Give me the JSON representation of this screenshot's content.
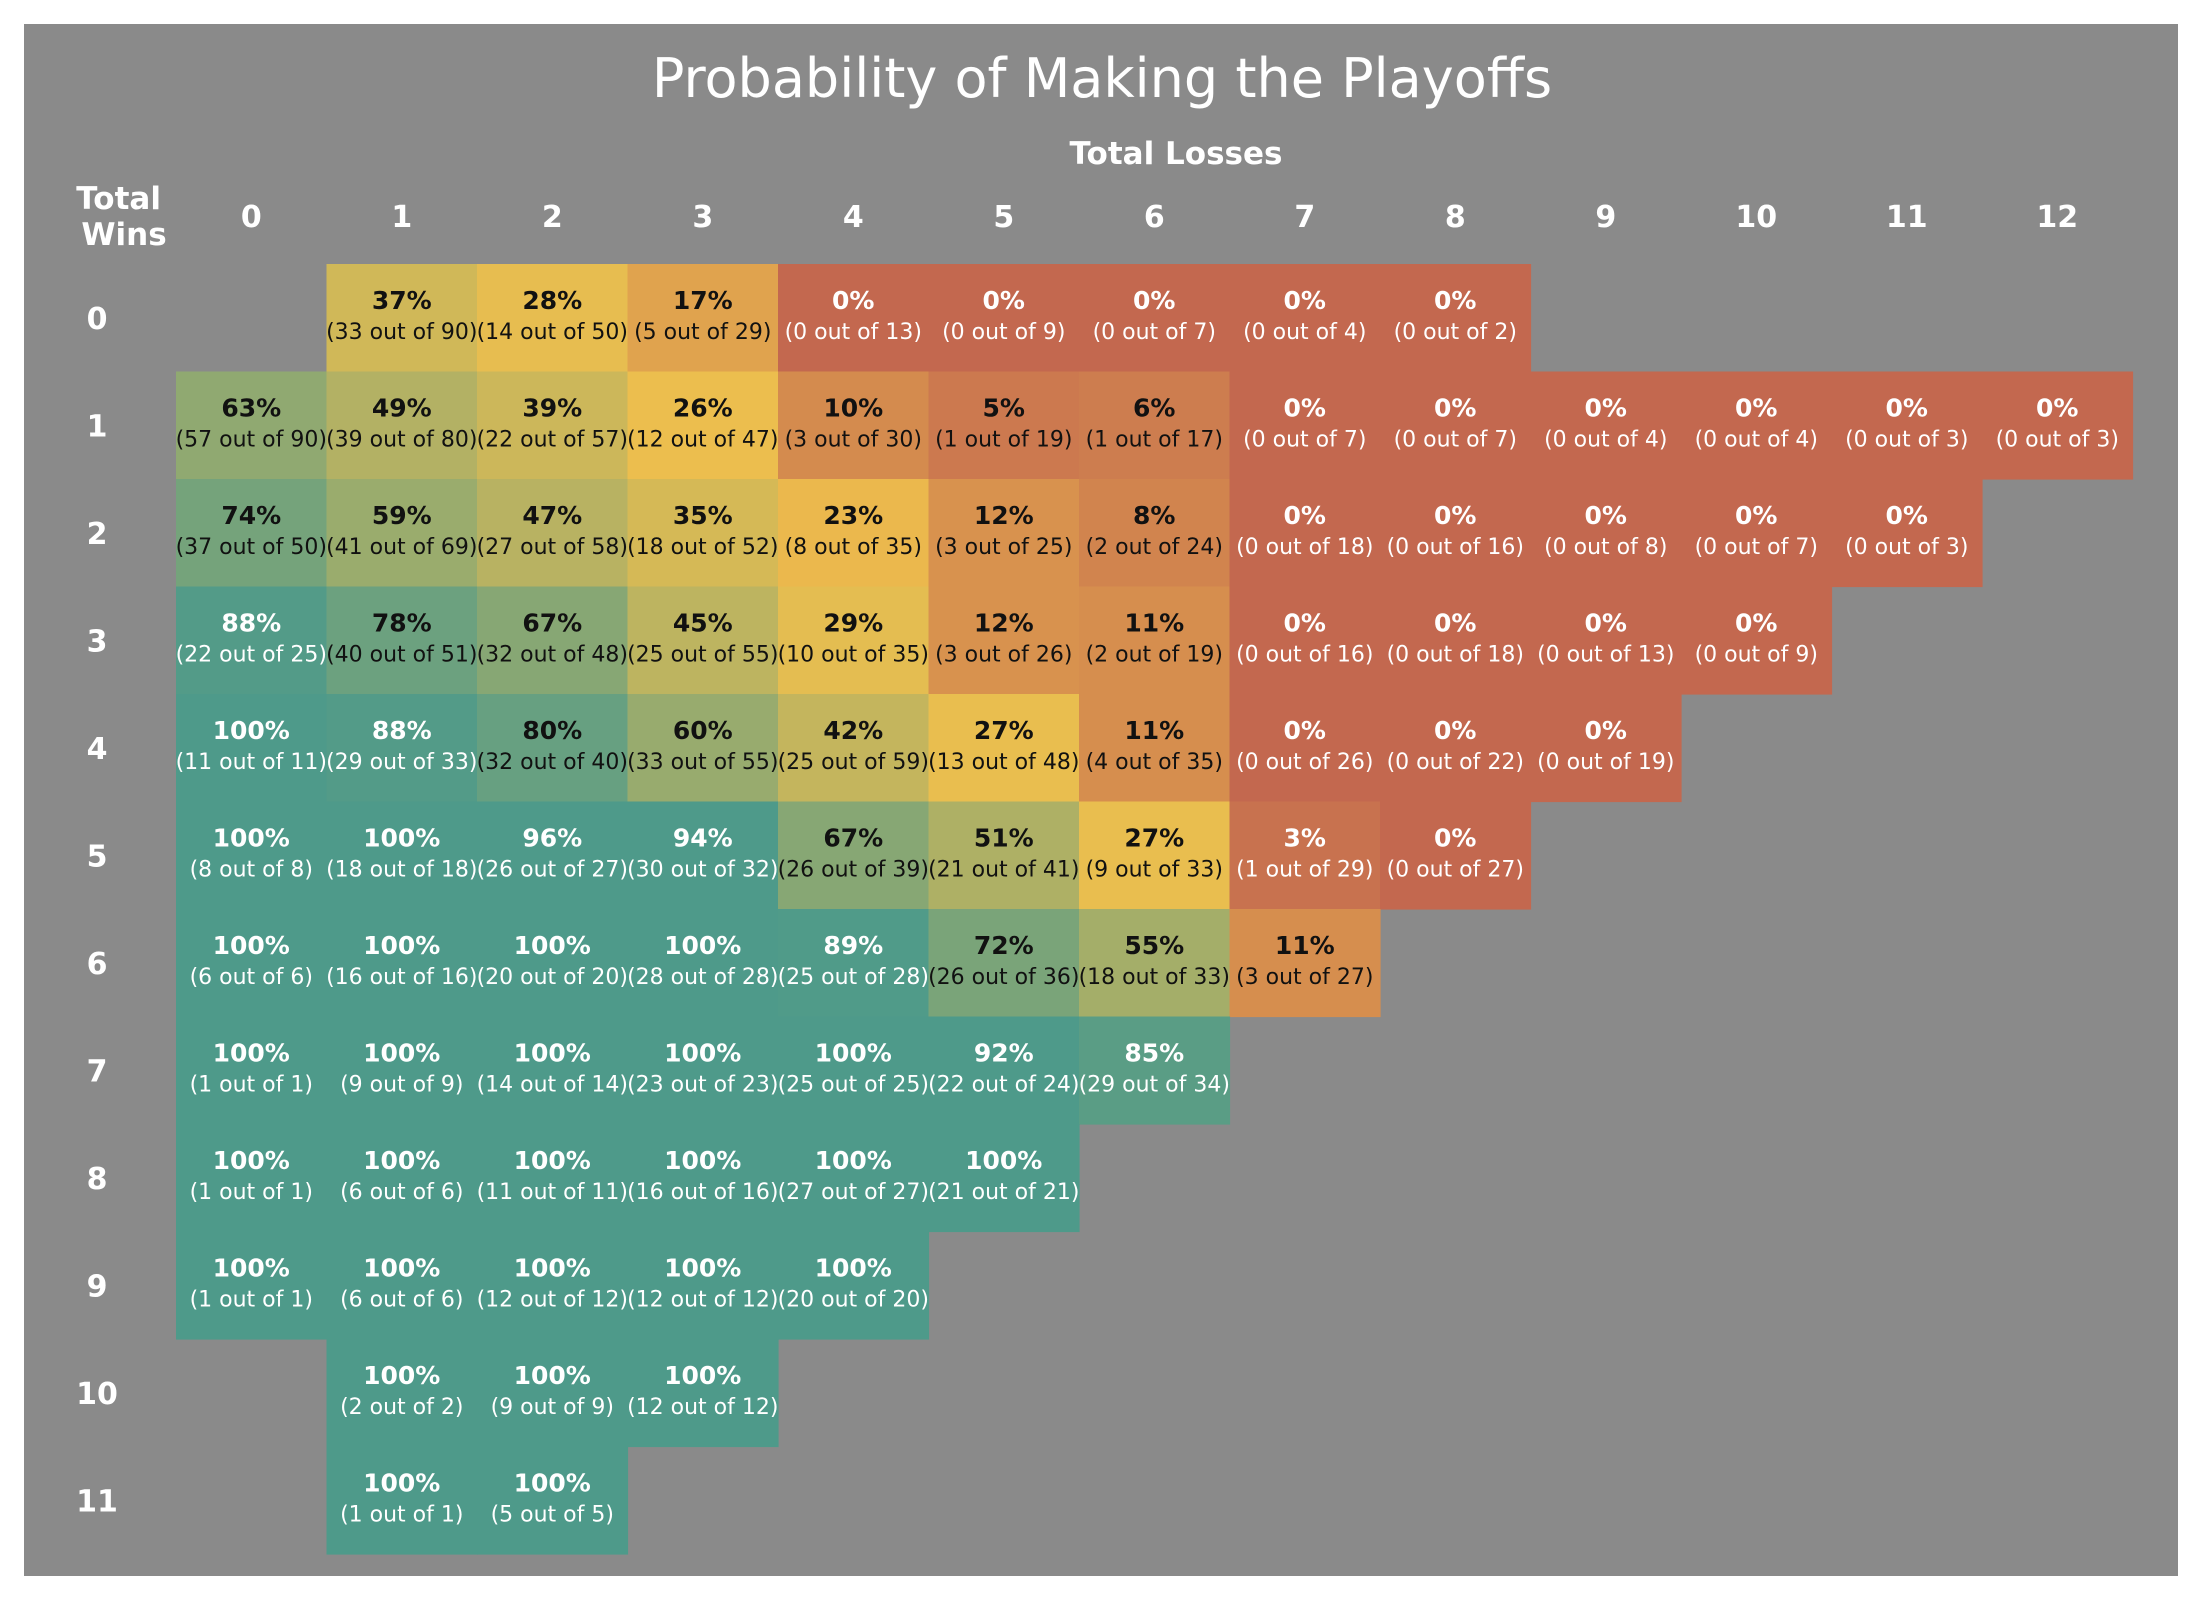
{
  "chart_data": {
    "type": "heatmap",
    "title": "Probability of Making the Playoffs",
    "xlabel": "Total Losses",
    "ylabel": "Total Wins",
    "x_categories": [
      "0",
      "1",
      "2",
      "3",
      "4",
      "5",
      "6",
      "7",
      "8",
      "9",
      "10",
      "11",
      "12"
    ],
    "y_categories": [
      "0",
      "1",
      "2",
      "3",
      "4",
      "5",
      "6",
      "7",
      "8",
      "9",
      "10",
      "11"
    ],
    "color_scale": {
      "low": "#c3684f",
      "mid": "#eebf4d",
      "high": "#4e9a8a"
    },
    "background": "#8a8a8a",
    "cells": [
      {
        "wins": 0,
        "losses": 1,
        "pct": "37%",
        "count": "(33 out of 90)"
      },
      {
        "wins": 0,
        "losses": 2,
        "pct": "28%",
        "count": "(14 out of 50)"
      },
      {
        "wins": 0,
        "losses": 3,
        "pct": "17%",
        "count": "(5 out of 29)"
      },
      {
        "wins": 0,
        "losses": 4,
        "pct": "0%",
        "count": "(0 out of 13)"
      },
      {
        "wins": 0,
        "losses": 5,
        "pct": "0%",
        "count": "(0 out of 9)"
      },
      {
        "wins": 0,
        "losses": 6,
        "pct": "0%",
        "count": "(0 out of 7)"
      },
      {
        "wins": 0,
        "losses": 7,
        "pct": "0%",
        "count": "(0 out of 4)"
      },
      {
        "wins": 0,
        "losses": 8,
        "pct": "0%",
        "count": "(0 out of 2)"
      },
      {
        "wins": 1,
        "losses": 0,
        "pct": "63%",
        "count": "(57 out of 90)"
      },
      {
        "wins": 1,
        "losses": 1,
        "pct": "49%",
        "count": "(39 out of 80)"
      },
      {
        "wins": 1,
        "losses": 2,
        "pct": "39%",
        "count": "(22 out of 57)"
      },
      {
        "wins": 1,
        "losses": 3,
        "pct": "26%",
        "count": "(12 out of 47)"
      },
      {
        "wins": 1,
        "losses": 4,
        "pct": "10%",
        "count": "(3 out of 30)"
      },
      {
        "wins": 1,
        "losses": 5,
        "pct": "5%",
        "count": "(1 out of 19)"
      },
      {
        "wins": 1,
        "losses": 6,
        "pct": "6%",
        "count": "(1 out of 17)"
      },
      {
        "wins": 1,
        "losses": 7,
        "pct": "0%",
        "count": "(0 out of 7)"
      },
      {
        "wins": 1,
        "losses": 8,
        "pct": "0%",
        "count": "(0 out of 7)"
      },
      {
        "wins": 1,
        "losses": 9,
        "pct": "0%",
        "count": "(0 out of 4)"
      },
      {
        "wins": 1,
        "losses": 10,
        "pct": "0%",
        "count": "(0 out of 4)"
      },
      {
        "wins": 1,
        "losses": 11,
        "pct": "0%",
        "count": "(0 out of 3)"
      },
      {
        "wins": 1,
        "losses": 12,
        "pct": "0%",
        "count": "(0 out of 3)"
      },
      {
        "wins": 2,
        "losses": 0,
        "pct": "74%",
        "count": "(37 out of 50)"
      },
      {
        "wins": 2,
        "losses": 1,
        "pct": "59%",
        "count": "(41 out of 69)"
      },
      {
        "wins": 2,
        "losses": 2,
        "pct": "47%",
        "count": "(27 out of 58)"
      },
      {
        "wins": 2,
        "losses": 3,
        "pct": "35%",
        "count": "(18 out of 52)"
      },
      {
        "wins": 2,
        "losses": 4,
        "pct": "23%",
        "count": "(8 out of 35)"
      },
      {
        "wins": 2,
        "losses": 5,
        "pct": "12%",
        "count": "(3 out of 25)"
      },
      {
        "wins": 2,
        "losses": 6,
        "pct": "8%",
        "count": "(2 out of 24)"
      },
      {
        "wins": 2,
        "losses": 7,
        "pct": "0%",
        "count": "(0 out of 18)"
      },
      {
        "wins": 2,
        "losses": 8,
        "pct": "0%",
        "count": "(0 out of 16)"
      },
      {
        "wins": 2,
        "losses": 9,
        "pct": "0%",
        "count": "(0 out of 8)"
      },
      {
        "wins": 2,
        "losses": 10,
        "pct": "0%",
        "count": "(0 out of 7)"
      },
      {
        "wins": 2,
        "losses": 11,
        "pct": "0%",
        "count": "(0 out of 3)"
      },
      {
        "wins": 3,
        "losses": 0,
        "pct": "88%",
        "count": "(22 out of 25)"
      },
      {
        "wins": 3,
        "losses": 1,
        "pct": "78%",
        "count": "(40 out of 51)"
      },
      {
        "wins": 3,
        "losses": 2,
        "pct": "67%",
        "count": "(32 out of 48)"
      },
      {
        "wins": 3,
        "losses": 3,
        "pct": "45%",
        "count": "(25 out of 55)"
      },
      {
        "wins": 3,
        "losses": 4,
        "pct": "29%",
        "count": "(10 out of 35)"
      },
      {
        "wins": 3,
        "losses": 5,
        "pct": "12%",
        "count": "(3 out of 26)"
      },
      {
        "wins": 3,
        "losses": 6,
        "pct": "11%",
        "count": "(2 out of 19)"
      },
      {
        "wins": 3,
        "losses": 7,
        "pct": "0%",
        "count": "(0 out of 16)"
      },
      {
        "wins": 3,
        "losses": 8,
        "pct": "0%",
        "count": "(0 out of 18)"
      },
      {
        "wins": 3,
        "losses": 9,
        "pct": "0%",
        "count": "(0 out of 13)"
      },
      {
        "wins": 3,
        "losses": 10,
        "pct": "0%",
        "count": "(0 out of 9)"
      },
      {
        "wins": 4,
        "losses": 0,
        "pct": "100%",
        "count": "(11 out of 11)"
      },
      {
        "wins": 4,
        "losses": 1,
        "pct": "88%",
        "count": "(29 out of 33)"
      },
      {
        "wins": 4,
        "losses": 2,
        "pct": "80%",
        "count": "(32 out of 40)"
      },
      {
        "wins": 4,
        "losses": 3,
        "pct": "60%",
        "count": "(33 out of 55)"
      },
      {
        "wins": 4,
        "losses": 4,
        "pct": "42%",
        "count": "(25 out of 59)"
      },
      {
        "wins": 4,
        "losses": 5,
        "pct": "27%",
        "count": "(13 out of 48)"
      },
      {
        "wins": 4,
        "losses": 6,
        "pct": "11%",
        "count": "(4 out of 35)"
      },
      {
        "wins": 4,
        "losses": 7,
        "pct": "0%",
        "count": "(0 out of 26)"
      },
      {
        "wins": 4,
        "losses": 8,
        "pct": "0%",
        "count": "(0 out of 22)"
      },
      {
        "wins": 4,
        "losses": 9,
        "pct": "0%",
        "count": "(0 out of 19)"
      },
      {
        "wins": 5,
        "losses": 0,
        "pct": "100%",
        "count": "(8 out of 8)"
      },
      {
        "wins": 5,
        "losses": 1,
        "pct": "100%",
        "count": "(18 out of 18)"
      },
      {
        "wins": 5,
        "losses": 2,
        "pct": "96%",
        "count": "(26 out of 27)"
      },
      {
        "wins": 5,
        "losses": 3,
        "pct": "94%",
        "count": "(30 out of 32)"
      },
      {
        "wins": 5,
        "losses": 4,
        "pct": "67%",
        "count": "(26 out of 39)"
      },
      {
        "wins": 5,
        "losses": 5,
        "pct": "51%",
        "count": "(21 out of 41)"
      },
      {
        "wins": 5,
        "losses": 6,
        "pct": "27%",
        "count": "(9 out of 33)"
      },
      {
        "wins": 5,
        "losses": 7,
        "pct": "3%",
        "count": "(1 out of 29)"
      },
      {
        "wins": 5,
        "losses": 8,
        "pct": "0%",
        "count": "(0 out of 27)"
      },
      {
        "wins": 6,
        "losses": 0,
        "pct": "100%",
        "count": "(6 out of 6)"
      },
      {
        "wins": 6,
        "losses": 1,
        "pct": "100%",
        "count": "(16 out of 16)"
      },
      {
        "wins": 6,
        "losses": 2,
        "pct": "100%",
        "count": "(20 out of 20)"
      },
      {
        "wins": 6,
        "losses": 3,
        "pct": "100%",
        "count": "(28 out of 28)"
      },
      {
        "wins": 6,
        "losses": 4,
        "pct": "89%",
        "count": "(25 out of 28)"
      },
      {
        "wins": 6,
        "losses": 5,
        "pct": "72%",
        "count": "(26 out of 36)"
      },
      {
        "wins": 6,
        "losses": 6,
        "pct": "55%",
        "count": "(18 out of 33)"
      },
      {
        "wins": 6,
        "losses": 7,
        "pct": "11%",
        "count": "(3 out of 27)"
      },
      {
        "wins": 7,
        "losses": 0,
        "pct": "100%",
        "count": "(1 out of 1)"
      },
      {
        "wins": 7,
        "losses": 1,
        "pct": "100%",
        "count": "(9 out of 9)"
      },
      {
        "wins": 7,
        "losses": 2,
        "pct": "100%",
        "count": "(14 out of 14)"
      },
      {
        "wins": 7,
        "losses": 3,
        "pct": "100%",
        "count": "(23 out of 23)"
      },
      {
        "wins": 7,
        "losses": 4,
        "pct": "100%",
        "count": "(25 out of 25)"
      },
      {
        "wins": 7,
        "losses": 5,
        "pct": "92%",
        "count": "(22 out of 24)"
      },
      {
        "wins": 7,
        "losses": 6,
        "pct": "85%",
        "count": "(29 out of 34)"
      },
      {
        "wins": 8,
        "losses": 0,
        "pct": "100%",
        "count": "(1 out of 1)"
      },
      {
        "wins": 8,
        "losses": 1,
        "pct": "100%",
        "count": "(6 out of 6)"
      },
      {
        "wins": 8,
        "losses": 2,
        "pct": "100%",
        "count": "(11 out of 11)"
      },
      {
        "wins": 8,
        "losses": 3,
        "pct": "100%",
        "count": "(16 out of 16)"
      },
      {
        "wins": 8,
        "losses": 4,
        "pct": "100%",
        "count": "(27 out of 27)"
      },
      {
        "wins": 8,
        "losses": 5,
        "pct": "100%",
        "count": "(21 out of 21)"
      },
      {
        "wins": 9,
        "losses": 0,
        "pct": "100%",
        "count": "(1 out of 1)"
      },
      {
        "wins": 9,
        "losses": 1,
        "pct": "100%",
        "count": "(6 out of 6)"
      },
      {
        "wins": 9,
        "losses": 2,
        "pct": "100%",
        "count": "(12 out of 12)"
      },
      {
        "wins": 9,
        "losses": 3,
        "pct": "100%",
        "count": "(12 out of 12)"
      },
      {
        "wins": 9,
        "losses": 4,
        "pct": "100%",
        "count": "(20 out of 20)"
      },
      {
        "wins": 10,
        "losses": 1,
        "pct": "100%",
        "count": "(2 out of 2)"
      },
      {
        "wins": 10,
        "losses": 2,
        "pct": "100%",
        "count": "(9 out of 9)"
      },
      {
        "wins": 10,
        "losses": 3,
        "pct": "100%",
        "count": "(12 out of 12)"
      },
      {
        "wins": 11,
        "losses": 1,
        "pct": "100%",
        "count": "(1 out of 1)"
      },
      {
        "wins": 11,
        "losses": 2,
        "pct": "100%",
        "count": "(5 out of 5)"
      }
    ]
  }
}
